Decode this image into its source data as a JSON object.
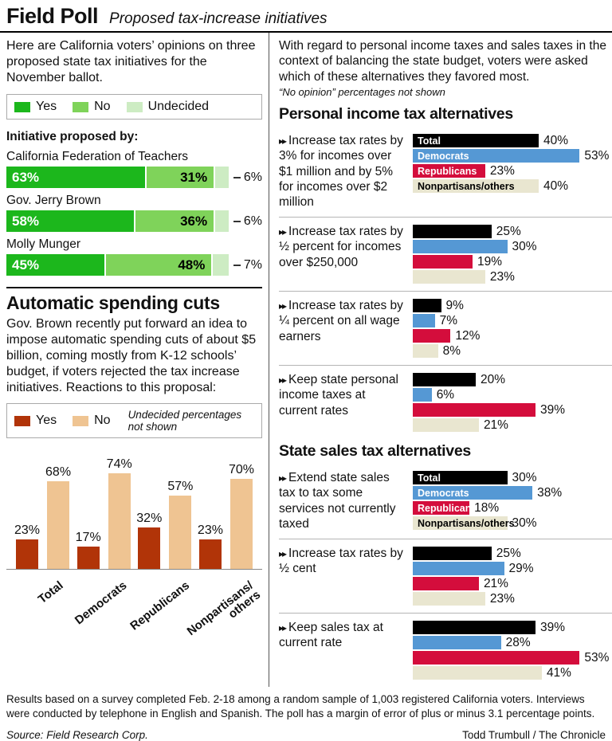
{
  "palette": {
    "ballot_yes": "#1cb71c",
    "ballot_no": "#7fd35a",
    "ballot_undecided": "#cdecc3",
    "spending_yes": "#b13408",
    "spending_no": "#efc492",
    "total": "#000000",
    "democrats": "#5598d4",
    "republicans": "#d40d3c",
    "nonpartisans": "#e9e6d0"
  },
  "header": {
    "title": "Field Poll",
    "subtitle": "Proposed tax-increase initiatives"
  },
  "party_labels": [
    "Total",
    "Democrats",
    "Republicans",
    "Nonpartisans/others"
  ],
  "left": {
    "intro": "Here are California voters’ opinions on three proposed state tax initiatives for the November ballot.",
    "ballot_legend": {
      "yes": "Yes",
      "no": "No",
      "undecided": "Undecided"
    },
    "initiative_header": "Initiative proposed by:",
    "initiatives": [
      {
        "name": "California Federation of Teachers",
        "yes": 63,
        "no": 31,
        "undecided": 6
      },
      {
        "name": "Gov. Jerry Brown",
        "yes": 58,
        "no": 36,
        "undecided": 6
      },
      {
        "name": "Molly Munger",
        "yes": 45,
        "no": 48,
        "undecided": 7
      }
    ],
    "spending": {
      "title": "Automatic spending cuts",
      "intro": "Gov. Brown recently put forward an idea to impose automatic spending cuts of about $5 billion, coming mostly from K-12 schools’ budget, if voters rejected the tax increase initiatives. Reactions to this proposal:",
      "legend": {
        "yes": "Yes",
        "no": "No",
        "note": "Undecided percentages not shown"
      },
      "groups": [
        {
          "label": "Total",
          "yes": 23,
          "no": 68
        },
        {
          "label": "Democrats",
          "yes": 17,
          "no": 74
        },
        {
          "label": "Republicans",
          "yes": 32,
          "no": 57
        },
        {
          "label": "Nonpartisans/\nothers",
          "yes": 23,
          "no": 70
        }
      ]
    }
  },
  "right": {
    "intro": "With regard to personal income taxes and sales taxes in the context of balancing the state budget, voters were asked which of these alternatives they favored most.",
    "note": "“No opinion” percentages not shown",
    "bullet": "▸▸",
    "income_heading": "Personal income tax alternatives",
    "sales_heading": "State sales tax alternatives",
    "income_groups": [
      {
        "label": "Increase tax rates by 3% for incomes over $1 million and by 5% for incomes over $2 million",
        "values": [
          40,
          53,
          23,
          40
        ]
      },
      {
        "label": "Increase tax rates by ½ percent for incomes over $250,000",
        "values": [
          25,
          30,
          19,
          23
        ]
      },
      {
        "label": "Increase tax rates by ¼ percent on all wage earners",
        "values": [
          9,
          7,
          12,
          8
        ]
      },
      {
        "label": "Keep state personal income taxes at current rates",
        "values": [
          20,
          6,
          39,
          21
        ]
      }
    ],
    "sales_groups": [
      {
        "label": "Extend state sales tax to tax some services not currently taxed",
        "values": [
          30,
          38,
          18,
          30
        ]
      },
      {
        "label": "Increase tax rates by ½ cent",
        "values": [
          25,
          29,
          21,
          23
        ]
      },
      {
        "label": "Keep sales tax at current rate",
        "values": [
          39,
          28,
          53,
          41
        ]
      }
    ]
  },
  "footer": {
    "note": "Results based on a survey completed Feb. 2-18 among a random sample of 1,003 registered California voters. Interviews were conducted by telephone in English and Spanish. The poll has a margin of error of plus or minus 3.1 percentage points.",
    "source": "Source: Field Research Corp.",
    "credit": "Todd Trumbull / The Chronicle"
  },
  "chart_data": [
    {
      "type": "bar",
      "orientation": "horizontal-stacked",
      "title": "Proposed state tax initiatives — November ballot support",
      "categories": [
        "California Federation of Teachers",
        "Gov. Jerry Brown",
        "Molly Munger"
      ],
      "series": [
        {
          "name": "Yes",
          "values": [
            63,
            58,
            45
          ]
        },
        {
          "name": "No",
          "values": [
            31,
            36,
            48
          ]
        },
        {
          "name": "Undecided",
          "values": [
            6,
            6,
            7
          ]
        }
      ],
      "unit": "%",
      "xlim": [
        0,
        100
      ],
      "legend_position": "top",
      "grid": false
    },
    {
      "type": "bar",
      "orientation": "vertical-grouped",
      "title": "Automatic spending cuts — reactions to this proposal",
      "categories": [
        "Total",
        "Democrats",
        "Republicans",
        "Nonpartisans/others"
      ],
      "series": [
        {
          "name": "Yes",
          "values": [
            23,
            17,
            32,
            23
          ]
        },
        {
          "name": "No",
          "values": [
            68,
            74,
            57,
            70
          ]
        }
      ],
      "annotation": "Undecided percentages not shown",
      "unit": "%",
      "ylim": [
        0,
        80
      ],
      "legend_position": "top",
      "grid": false
    },
    {
      "type": "bar",
      "orientation": "horizontal-grouped",
      "title": "Personal income tax alternatives",
      "categories": [
        "Total",
        "Democrats",
        "Republicans",
        "Nonpartisans/others"
      ],
      "series": [
        {
          "name": "Increase tax rates by 3% for incomes over $1 million and by 5% for incomes over $2 million",
          "values": [
            40,
            53,
            23,
            40
          ]
        },
        {
          "name": "Increase tax rates by ½ percent for incomes over $250,000",
          "values": [
            25,
            30,
            19,
            23
          ]
        },
        {
          "name": "Increase tax rates by ¼ percent on all wage earners",
          "values": [
            9,
            7,
            12,
            8
          ]
        },
        {
          "name": "Keep state personal income taxes at current rates",
          "values": [
            20,
            6,
            39,
            21
          ]
        }
      ],
      "annotation": "“No opinion” percentages not shown",
      "unit": "%",
      "xlim": [
        0,
        55
      ],
      "grid": false
    },
    {
      "type": "bar",
      "orientation": "horizontal-grouped",
      "title": "State sales tax alternatives",
      "categories": [
        "Total",
        "Democrats",
        "Republicans",
        "Nonpartisans/others"
      ],
      "series": [
        {
          "name": "Extend state sales tax to tax some services not currently taxed",
          "values": [
            30,
            38,
            18,
            30
          ]
        },
        {
          "name": "Increase tax rates by ½ cent",
          "values": [
            25,
            29,
            21,
            23
          ]
        },
        {
          "name": "Keep sales tax at current rate",
          "values": [
            39,
            28,
            53,
            41
          ]
        }
      ],
      "annotation": "“No opinion” percentages not shown",
      "unit": "%",
      "xlim": [
        0,
        55
      ],
      "grid": false
    }
  ]
}
